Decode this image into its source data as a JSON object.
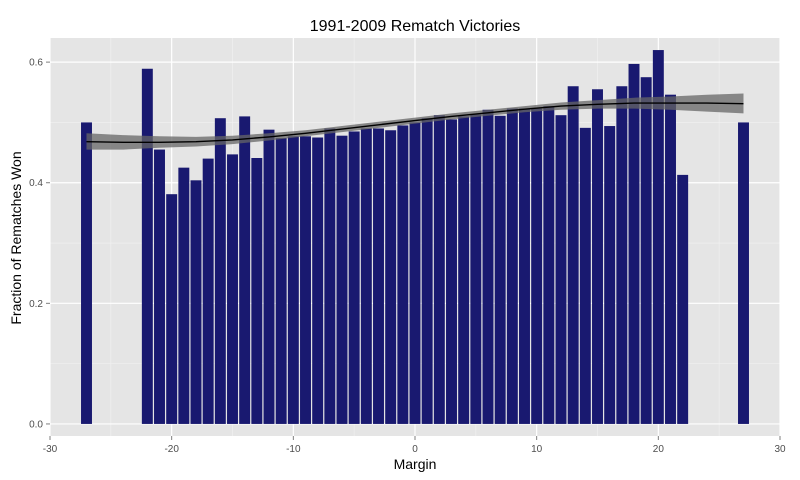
{
  "chart_data": {
    "type": "bar",
    "title": "1991-2009 Rematch Victories",
    "xlabel": "Margin",
    "ylabel": "Fraction of Rematches Won",
    "xlim": [
      -30,
      30
    ],
    "ylim": [
      -0.02,
      0.64
    ],
    "x_ticks": [
      "-30",
      "-20",
      "-10",
      "0",
      "10",
      "20",
      "30"
    ],
    "x_tick_values": [
      -30,
      -20,
      -10,
      0,
      10,
      20,
      30
    ],
    "y_ticks": [
      "0.0",
      "0.2",
      "0.4",
      "0.6"
    ],
    "y_tick_values": [
      0.0,
      0.2,
      0.4,
      0.6
    ],
    "grid": true,
    "bar_color": "#191970",
    "smooth_color": "#000000",
    "ribbon_color": "#666666",
    "panel_color": "#e5e5e5",
    "x": [
      -27,
      -22,
      -21,
      -20,
      -19,
      -18,
      -17,
      -16,
      -15,
      -14,
      -13,
      -12,
      -11,
      -10,
      -9,
      -8,
      -7,
      -6,
      -5,
      -4,
      -3,
      -2,
      -1,
      0,
      1,
      2,
      3,
      4,
      5,
      6,
      7,
      8,
      9,
      10,
      11,
      12,
      13,
      14,
      15,
      16,
      17,
      18,
      19,
      20,
      21,
      22,
      27
    ],
    "values": [
      0.5,
      0.589,
      0.455,
      0.381,
      0.425,
      0.404,
      0.44,
      0.507,
      0.447,
      0.51,
      0.441,
      0.488,
      0.474,
      0.477,
      0.477,
      0.475,
      0.49,
      0.478,
      0.485,
      0.49,
      0.49,
      0.487,
      0.495,
      0.5,
      0.507,
      0.512,
      0.505,
      0.51,
      0.513,
      0.521,
      0.511,
      0.523,
      0.523,
      0.523,
      0.527,
      0.512,
      0.56,
      0.491,
      0.555,
      0.494,
      0.56,
      0.597,
      0.575,
      0.62,
      0.546,
      0.413,
      0.5
    ],
    "smooth": {
      "x": [
        -27,
        -24,
        -21,
        -18,
        -15,
        -12,
        -9,
        -6,
        -3,
        0,
        3,
        6,
        9,
        12,
        15,
        18,
        21,
        24,
        27
      ],
      "y": [
        0.468,
        0.467,
        0.467,
        0.468,
        0.471,
        0.476,
        0.482,
        0.489,
        0.496,
        0.503,
        0.51,
        0.516,
        0.522,
        0.527,
        0.53,
        0.532,
        0.532,
        0.532,
        0.531
      ],
      "lower": [
        0.455,
        0.455,
        0.458,
        0.46,
        0.464,
        0.47,
        0.477,
        0.484,
        0.491,
        0.498,
        0.505,
        0.511,
        0.517,
        0.521,
        0.523,
        0.523,
        0.521,
        0.518,
        0.515
      ],
      "upper": [
        0.482,
        0.479,
        0.477,
        0.476,
        0.478,
        0.482,
        0.487,
        0.494,
        0.501,
        0.508,
        0.515,
        0.521,
        0.527,
        0.533,
        0.537,
        0.541,
        0.543,
        0.546,
        0.548
      ]
    }
  }
}
